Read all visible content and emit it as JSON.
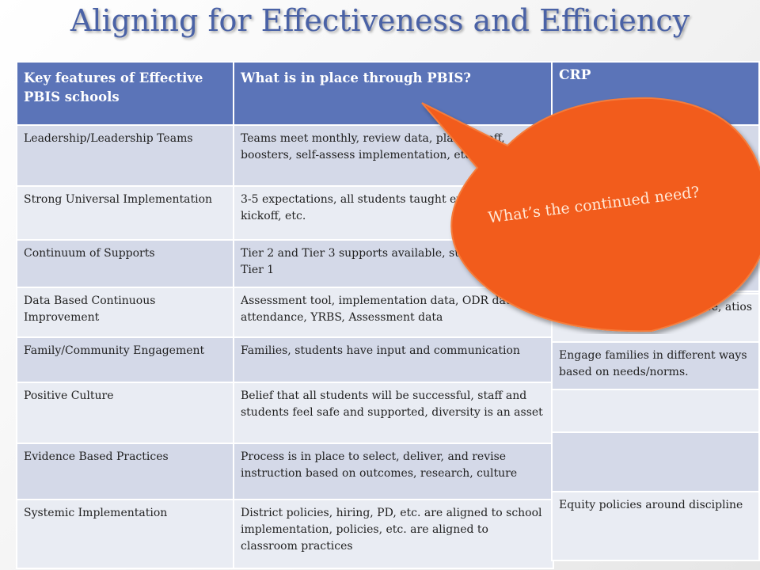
{
  "slide": {
    "title": "Aligning for Effectiveness and Efficiency"
  },
  "main_table": {
    "headers": [
      "Key features of Effective PBIS schools",
      "What is in place through PBIS?"
    ],
    "rows": [
      {
        "feature": "Leadership/Leadership Teams",
        "pbis": "Teams meet monthly, review data, plan kickoff, boosters, self-assess implementation, etc."
      },
      {
        "feature": "Strong Universal Implementation",
        "pbis": "3-5 expectations, all students taught expectations, kickoff, etc."
      },
      {
        "feature": "Continuum of Supports",
        "pbis": "Tier 2 and Tier 3 supports available, supported by Tier 1"
      },
      {
        "feature": "Data Based Continuous Improvement",
        "pbis": "Assessment tool, implementation data, ODR data, attendance, YRBS, Assessment data"
      },
      {
        "feature": "Family/Community Engagement",
        "pbis": "Families, students have input and communication"
      },
      {
        "feature": "Positive Culture",
        "pbis": "Belief that all students will be successful, staff and students feel safe and supported, diversity is an asset"
      },
      {
        "feature": "Evidence Based Practices",
        "pbis": "Process is in place to select, deliver, and revise instruction based on outcomes, research, culture"
      },
      {
        "feature": "Systemic Implementation",
        "pbis": "District policies, hiring, PD, etc. are aligned to school implementation, policies, etc. are aligned to classroom practices"
      }
    ]
  },
  "crp_table": {
    "header": "CRP",
    "rows": [
      "",
      "",
      "",
      "",
      "ace, atios",
      "Engage families in different ways based on needs/norms.",
      "",
      "",
      "Equity policies around discipline"
    ]
  },
  "callout": {
    "text": "What’s the continued need?",
    "color": "#f26522"
  },
  "colors": {
    "header_blue": "#5b74b8",
    "title_blue": "#4a62a6",
    "row_dark": "#d4d9e8",
    "row_light": "#e9ecf3"
  }
}
